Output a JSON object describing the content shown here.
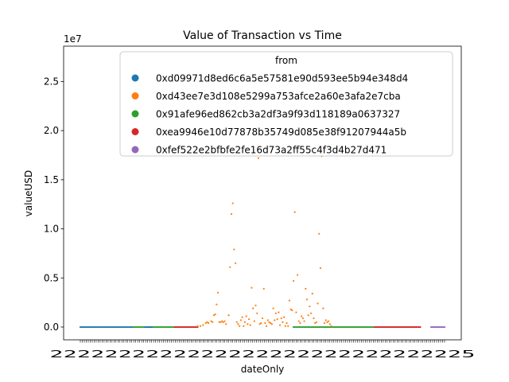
{
  "chart_data": {
    "type": "scatter",
    "title": "Value of Transaction vs Time",
    "xlabel": "dateOnly",
    "ylabel": "valueUSD",
    "y_scale_note": "1e7",
    "ylim": [
      -1.3,
      28.6
    ],
    "yticks": [
      {
        "v": 0,
        "label": "0.0"
      },
      {
        "v": 5,
        "label": "0.5"
      },
      {
        "v": 10,
        "label": "1.0"
      },
      {
        "v": 15,
        "label": "1.5"
      },
      {
        "v": 20,
        "label": "2.0"
      },
      {
        "v": 25,
        "label": "2.5"
      }
    ],
    "x_axis": {
      "categorical": true,
      "tick_count": 185,
      "overlapping_label_text": "2222222222222222222222222222225"
    },
    "legend": {
      "title": "from",
      "placement": "upper-right",
      "entries": [
        {
          "name": "0xd09971d8ed6c6a5e57581e90d593ee5b94e348d4",
          "color": "#1f77b4"
        },
        {
          "name": "0xd43ee7e3d108e5299a753afce2a60e3afa2e7cba",
          "color": "#ff7f0e"
        },
        {
          "name": "0x91afe96ed862cb3a2df3a9f93d118189a0637327",
          "color": "#2ca02c"
        },
        {
          "name": "0xea9946e10d77878b35749d085e38f91207944a5b",
          "color": "#d62728"
        },
        {
          "name": "0xfef522e2bfbfe2fe16d73a2ff55c4f3d4b27d471",
          "color": "#9467bd"
        }
      ]
    },
    "series": [
      {
        "name": "0xd09971d8ed6c6a5e57581e90d593ee5b94e348d4",
        "color": "#1f77b4",
        "x_range": [
          0,
          39
        ],
        "y": 0
      },
      {
        "name": "0x91afe96ed862cb3a2df3a9f93d118189a0637327",
        "color": "#2ca02c",
        "x_range": [
          39,
          70
        ],
        "y": 0
      },
      {
        "name": "0xea9946e10d77878b35749d085e38f91207944a5b",
        "color": "#d62728",
        "x_range": [
          70,
          87
        ],
        "y": 0
      },
      {
        "name": "0xd09971d8ed6c6a5e57581e90d593ee5b94e348d4",
        "color": "#1f77b4",
        "x_range": [
          48,
          53
        ],
        "y": 0
      },
      {
        "name": "0x91afe96ed862cb3a2df3a9f93d118189a0637327",
        "color": "#2ca02c",
        "x_range": [
          158,
          217
        ],
        "y": 0
      },
      {
        "name": "0xea9946e10d77878b35749d085e38f91207944a5b",
        "color": "#d62728",
        "x_range": [
          218,
          252
        ],
        "y": 0
      },
      {
        "name": "0xfef522e2bfbfe2fe16d73a2ff55c4f3d4b27d471",
        "color": "#9467bd",
        "x_range": [
          260,
          270
        ],
        "y": 0
      },
      {
        "name": "0xd43ee7e3d108e5299a753afce2a60e3afa2e7cba",
        "color": "#ff7f0e",
        "points": [
          [
            87,
            0.1
          ],
          [
            89,
            0.1
          ],
          [
            91,
            0.2
          ],
          [
            93,
            0.4
          ],
          [
            94,
            0.5
          ],
          [
            95,
            0.4
          ],
          [
            97,
            0.6
          ],
          [
            98,
            0.5
          ],
          [
            99,
            1.2
          ],
          [
            100,
            1.3
          ],
          [
            101,
            2.3
          ],
          [
            102,
            3.5
          ],
          [
            103,
            0.5
          ],
          [
            104,
            0.5
          ],
          [
            105,
            0.6
          ],
          [
            106,
            0.5
          ],
          [
            107,
            0.6
          ],
          [
            108,
            0.3
          ],
          [
            110,
            1.2
          ],
          [
            111,
            6.1
          ],
          [
            112,
            11.5
          ],
          [
            113,
            12.6
          ],
          [
            114,
            7.9
          ],
          [
            115,
            6.5
          ],
          [
            116,
            0.5
          ],
          [
            117,
            0.3
          ],
          [
            118,
            0.1
          ],
          [
            119,
            0.7
          ],
          [
            120,
            1.0
          ],
          [
            121,
            0.1
          ],
          [
            122,
            0.5
          ],
          [
            123,
            1.1
          ],
          [
            124,
            0.3
          ],
          [
            125,
            0.8
          ],
          [
            126,
            0.2
          ],
          [
            127,
            4.0
          ],
          [
            128,
            1.9
          ],
          [
            129,
            0.6
          ],
          [
            130,
            2.2
          ],
          [
            131,
            1.4
          ],
          [
            132,
            17.2
          ],
          [
            133,
            0.3
          ],
          [
            134,
            0.4
          ],
          [
            135,
            0.9
          ],
          [
            136,
            3.9
          ],
          [
            137,
            0.4
          ],
          [
            138,
            0.1
          ],
          [
            139,
            0.7
          ],
          [
            140,
            0.5
          ],
          [
            141,
            0.4
          ],
          [
            142,
            0.3
          ],
          [
            143,
            1.9
          ],
          [
            144,
            0.7
          ],
          [
            145,
            1.4
          ],
          [
            146,
            0.8
          ],
          [
            147,
            1.5
          ],
          [
            148,
            0.2
          ],
          [
            149,
            0.9
          ],
          [
            150,
            0.5
          ],
          [
            151,
            1.0
          ],
          [
            152,
            0.1
          ],
          [
            153,
            0.4
          ],
          [
            154,
            0.1
          ],
          [
            155,
            2.7
          ],
          [
            156,
            1.8
          ],
          [
            157,
            1.7
          ],
          [
            158,
            4.7
          ],
          [
            159,
            11.7
          ],
          [
            160,
            1.5
          ],
          [
            161,
            5.3
          ],
          [
            162,
            0.6
          ],
          [
            163,
            0.4
          ],
          [
            164,
            1.1
          ],
          [
            165,
            0.9
          ],
          [
            166,
            0.6
          ],
          [
            167,
            3.9
          ],
          [
            168,
            2.8
          ],
          [
            169,
            1.2
          ],
          [
            170,
            2.1
          ],
          [
            171,
            1.4
          ],
          [
            172,
            3.4
          ],
          [
            173,
            0.9
          ],
          [
            174,
            0.4
          ],
          [
            175,
            0.5
          ],
          [
            176,
            2.4
          ],
          [
            177,
            9.5
          ],
          [
            178,
            6.0
          ],
          [
            179,
            17.4
          ],
          [
            180,
            1.9
          ],
          [
            181,
            0.4
          ],
          [
            182,
            0.7
          ],
          [
            183,
            0.5
          ],
          [
            184,
            0.6
          ],
          [
            185,
            0.3
          ],
          [
            186,
            0.1
          ]
        ]
      }
    ]
  }
}
